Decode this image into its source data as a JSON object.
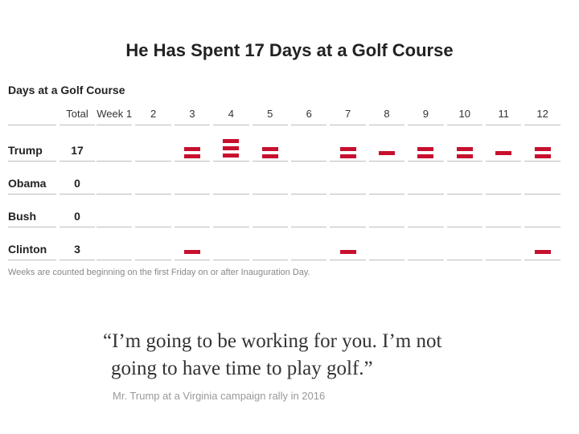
{
  "header": {
    "title": "He Has Spent 17 Days at a Golf Course",
    "subhead": "Days at a Golf Course"
  },
  "columns": {
    "total_label": "Total",
    "week_labels": [
      "Week 1",
      "2",
      "3",
      "4",
      "5",
      "6",
      "7",
      "8",
      "9",
      "10",
      "11",
      "12"
    ]
  },
  "chart_data": {
    "type": "table",
    "title": "He Has Spent 17 Days at a Golf Course",
    "subtitle": "Days at a Golf Course",
    "categories": [
      "Week 1",
      "2",
      "3",
      "4",
      "5",
      "6",
      "7",
      "8",
      "9",
      "10",
      "11",
      "12"
    ],
    "series": [
      {
        "name": "Trump",
        "total": "17",
        "values": [
          0,
          0,
          2,
          3,
          2,
          0,
          2,
          1,
          2,
          2,
          1,
          2
        ]
      },
      {
        "name": "Obama",
        "total": "0",
        "values": [
          0,
          0,
          0,
          0,
          0,
          0,
          0,
          0,
          0,
          0,
          0,
          0
        ]
      },
      {
        "name": "Bush",
        "total": "0",
        "values": [
          0,
          0,
          0,
          0,
          0,
          0,
          0,
          0,
          0,
          0,
          0,
          0
        ]
      },
      {
        "name": "Clinton",
        "total": "3",
        "values": [
          0,
          0,
          1,
          0,
          0,
          0,
          1,
          0,
          0,
          0,
          0,
          1
        ]
      }
    ],
    "colors": {
      "bar": "#c8102e",
      "rule": "#bdbdbd"
    }
  },
  "footnote": "Weeks are counted beginning on the first Friday on or after Inauguration Day.",
  "quote": {
    "line1": "“I’m going to be working for you. I’m not",
    "line2": "going to have time to play golf.”",
    "attribution": "Mr. Trump at a Virginia campaign rally in 2016"
  }
}
